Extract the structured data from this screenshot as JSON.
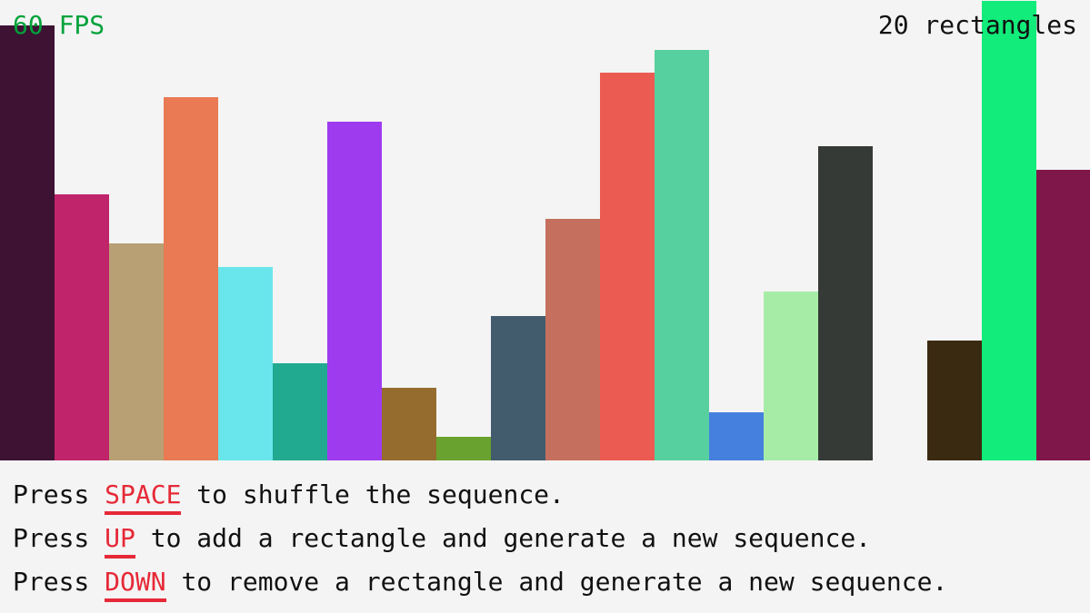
{
  "hud": {
    "fps": "60 FPS",
    "count": "20 rectangles",
    "fps_color": "#00a23a"
  },
  "sequence": {
    "max_value": 506,
    "values": [
      479,
      293,
      239,
      400,
      213,
      107,
      373,
      80,
      26,
      159,
      266,
      427,
      452,
      53,
      186,
      346,
      0,
      132,
      506,
      320
    ],
    "colors": [
      "#3d1233",
      "#c0246a",
      "#b8a074",
      "#e97a53",
      "#68e6ec",
      "#22aa90",
      "#9e3bef",
      "#956c2e",
      "#69a22e",
      "#425c6e",
      "#c5705e",
      "#ec5b51",
      "#57d09f",
      "#4580de",
      "#a6eca7",
      "#353a36",
      "#f4f4f4",
      "#3b2a12",
      "#12ec7a",
      "#80174a"
    ]
  },
  "instructions": [
    {
      "pre": "Press ",
      "key": "SPACE",
      "post": " to shuffle the sequence."
    },
    {
      "pre": "Press ",
      "key": "UP",
      "post": " to add a rectangle and generate a new sequence."
    },
    {
      "pre": "Press ",
      "key": "DOWN",
      "post": " to remove a rectangle and generate a new sequence."
    }
  ],
  "key_color": "#e62937"
}
